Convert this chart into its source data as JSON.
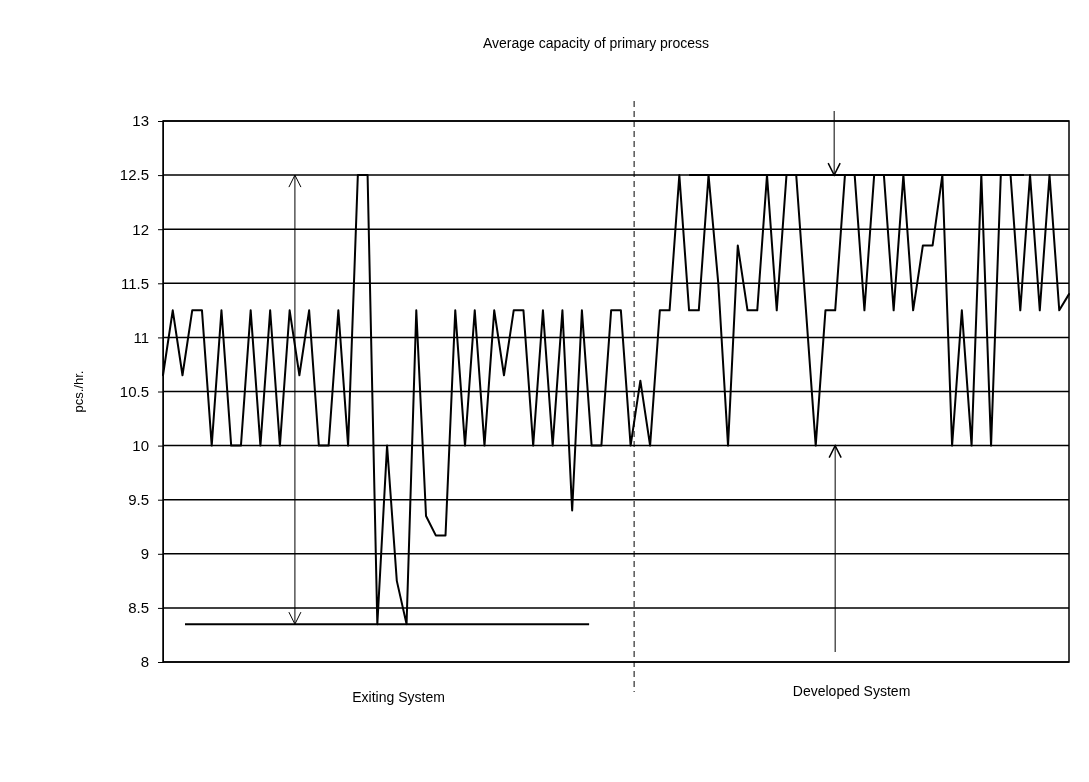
{
  "chart_data": {
    "type": "line",
    "title": "Average capacity of primary process",
    "ylabel": "pcs./hr.",
    "categories": [
      null,
      null,
      null,
      null,
      null,
      null,
      null,
      null,
      null,
      null,
      null,
      null,
      null,
      null,
      null,
      null,
      null,
      null,
      null,
      null,
      null,
      null,
      null,
      null,
      null,
      null,
      null,
      null,
      null,
      null,
      null,
      null,
      null,
      null,
      null,
      null,
      null,
      null,
      null,
      null,
      null,
      null,
      null,
      null,
      null,
      null,
      null,
      null,
      null,
      null,
      null,
      null,
      null,
      null,
      null,
      null,
      null,
      null,
      null,
      null,
      null,
      null,
      null,
      null,
      null,
      null,
      null,
      null,
      null,
      null,
      null,
      null,
      null,
      null,
      null,
      null,
      null,
      null,
      null,
      null,
      null,
      null,
      null,
      null,
      null,
      null,
      null,
      null,
      null,
      null,
      null,
      null,
      null,
      null
    ],
    "ylim": [
      8,
      13
    ],
    "yticks": [
      8,
      8.5,
      9,
      9.5,
      10,
      10.5,
      11,
      11.5,
      12,
      12.5,
      13
    ],
    "tick_labels": "y",
    "grid": "y",
    "marker": "none",
    "line_style": "solid",
    "series": [
      {
        "color": "#000000",
        "values": [
          10.65,
          11.25,
          10.65,
          11.25,
          11.25,
          10,
          11.25,
          10,
          10,
          11.25,
          10,
          11.25,
          10,
          11.25,
          10.65,
          11.25,
          10,
          10,
          11.25,
          10,
          12.5,
          12.5,
          8.35,
          10,
          8.75,
          8.35,
          11.25,
          9.35,
          9.17,
          9.17,
          11.25,
          10,
          11.25,
          10,
          11.25,
          10.65,
          11.25,
          11.25,
          10,
          11.25,
          10,
          11.25,
          9.4,
          11.25,
          10,
          10,
          11.25,
          11.25,
          10,
          10.6,
          10,
          11.25,
          11.25,
          12.5,
          11.25,
          11.25,
          12.5,
          11.5,
          10,
          11.85,
          11.25,
          11.25,
          12.5,
          11.25,
          12.5,
          12.5,
          11.25,
          10,
          11.25,
          11.25,
          12.5,
          12.5,
          11.25,
          12.5,
          12.5,
          11.25,
          12.5,
          11.25,
          11.85,
          11.85,
          12.5,
          10,
          11.25,
          10,
          12.5,
          10,
          12.5,
          12.5,
          11.25,
          12.5,
          11.25,
          12.5,
          11.25,
          11.4
        ]
      }
    ],
    "ref_lines": [
      {
        "axis": "y",
        "value": 8.35,
        "color": "#000000",
        "line_style": "solid"
      },
      {
        "axis": "y",
        "value": 12.5,
        "color": "#000000",
        "line_style": "solid"
      }
    ],
    "annotations": [
      "Exiting System",
      "Developed System"
    ]
  }
}
